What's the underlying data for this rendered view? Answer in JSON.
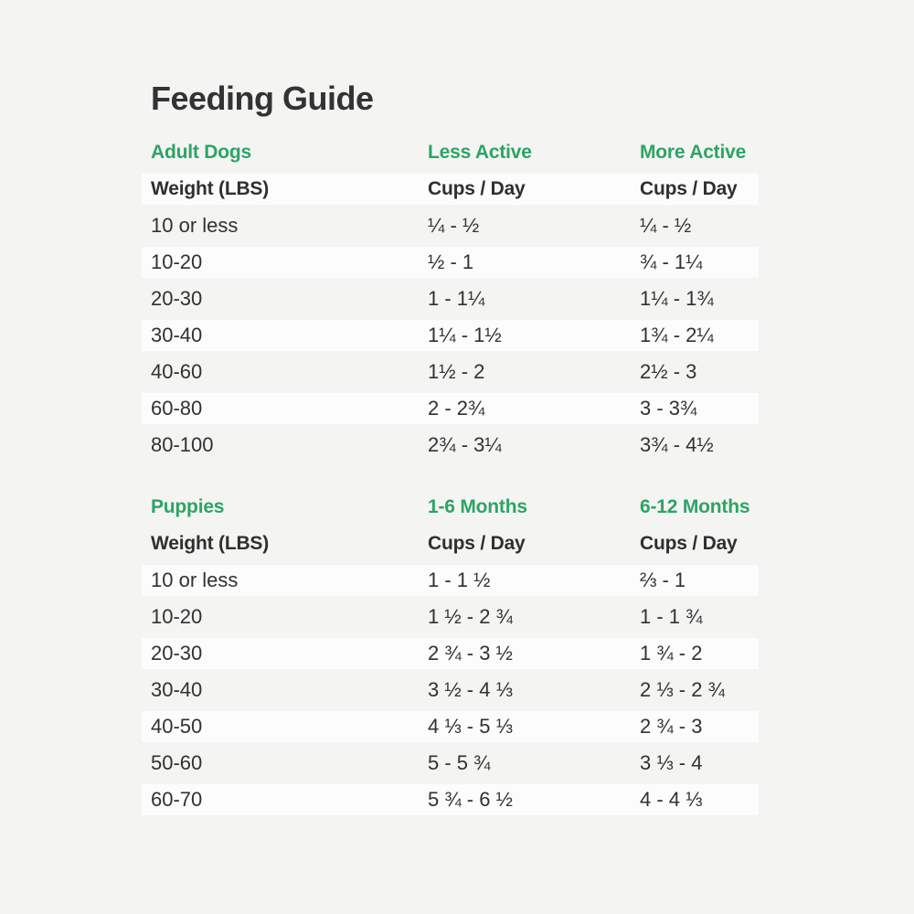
{
  "page": {
    "title": "Feeding Guide",
    "background_color": "#f4f4f3",
    "stripe_color": "#fcfcfc",
    "accent_green": "#2da464",
    "text_color": "#313131"
  },
  "tables": [
    {
      "section_label": "Adult Dogs",
      "col2_label": "Less Active",
      "col3_label": "More Active",
      "subheaders": {
        "col1": "Weight (LBS)",
        "col2": "Cups / Day",
        "col3": "Cups / Day"
      },
      "rows": [
        [
          "10 or less",
          "¼ - ½",
          "¼ - ½"
        ],
        [
          "10-20",
          "½ - 1",
          "¾ - 1¼"
        ],
        [
          "20-30",
          "1 - 1¼",
          "1¼ - 1¾"
        ],
        [
          "30-40",
          "1¼ - 1½",
          "1¾ - 2¼"
        ],
        [
          "40-60",
          "1½ - 2",
          "2½ - 3"
        ],
        [
          "60-80",
          "2 - 2¾",
          "3 - 3¾"
        ],
        [
          "80-100",
          "2¾ - 3¼",
          "3¾ - 4½"
        ]
      ]
    },
    {
      "section_label": "Puppies",
      "col2_label": "1-6 Months",
      "col3_label": "6-12 Months",
      "subheaders": {
        "col1": "Weight (LBS)",
        "col2": "Cups / Day",
        "col3": "Cups / Day"
      },
      "rows": [
        [
          "10 or less",
          "1 - 1 ½",
          "⅔ - 1"
        ],
        [
          "10-20",
          "1 ½ - 2 ¾",
          "1 - 1 ¾"
        ],
        [
          "20-30",
          "2 ¾ - 3 ½",
          "1 ¾ - 2"
        ],
        [
          "30-40",
          "3 ½ - 4 ⅓",
          "2 ⅓ - 2 ¾"
        ],
        [
          "40-50",
          "4 ⅓ - 5 ⅓",
          "2 ¾ - 3"
        ],
        [
          "50-60",
          "5 - 5 ¾",
          "3 ⅓ - 4"
        ],
        [
          "60-70",
          "5 ¾ - 6 ½",
          "4 - 4 ⅓"
        ]
      ]
    }
  ]
}
